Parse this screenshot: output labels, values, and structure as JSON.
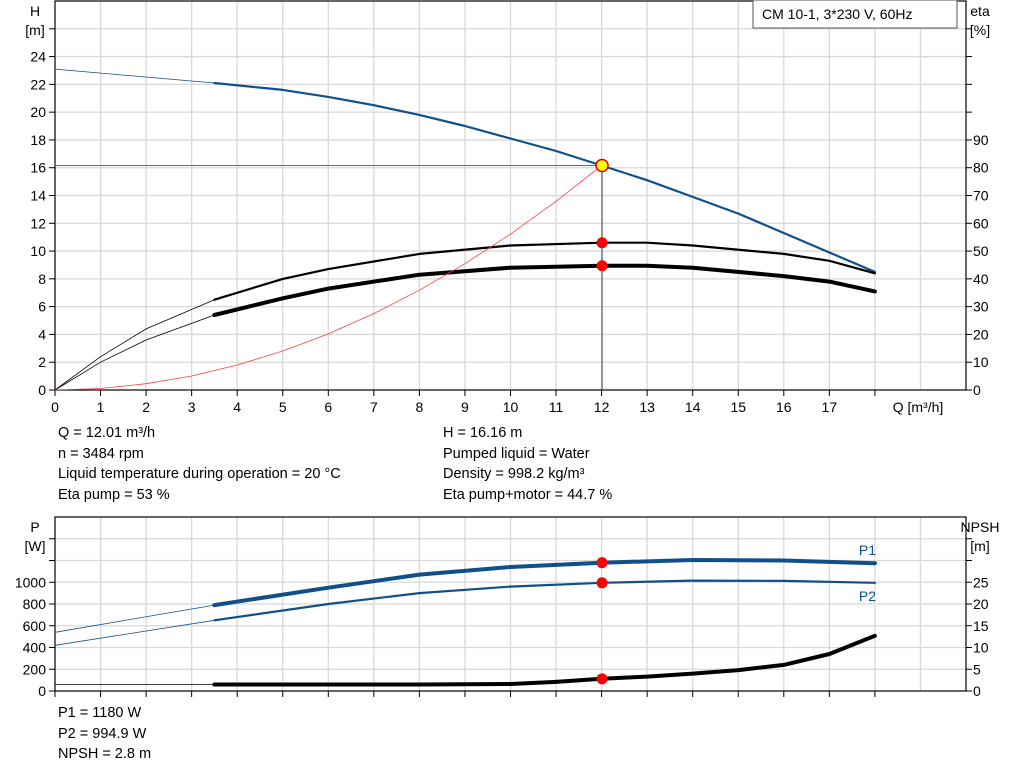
{
  "chart_data": [
    {
      "type": "line",
      "legend_box": "CM 10-1, 3*230 V, 60Hz",
      "xlabel": "Q [m³/h]",
      "ylabel_left": [
        "H",
        "[m]"
      ],
      "ylabel_right": [
        "eta",
        "[%]"
      ],
      "x_ticks": [
        0,
        1,
        2,
        3,
        4,
        5,
        6,
        7,
        8,
        9,
        10,
        11,
        12,
        13,
        14,
        15,
        16,
        17
      ],
      "xlim": [
        0,
        20
      ],
      "y_left_ticks": [
        0,
        2,
        4,
        6,
        8,
        10,
        12,
        14,
        16,
        18,
        20,
        22,
        24
      ],
      "ylim_left": [
        0,
        28
      ],
      "y_right_ticks": [
        0,
        10,
        20,
        30,
        40,
        50,
        60,
        70,
        80,
        90
      ],
      "ylim_right": [
        0,
        140
      ],
      "grid": true,
      "series": [
        {
          "id": "H",
          "axis": "left",
          "color": "#0f4f8a",
          "x": [
            0,
            3.5,
            5,
            6,
            7,
            8,
            9,
            10,
            11,
            12,
            13,
            14,
            15,
            16,
            17,
            18
          ],
          "y": [
            23.1,
            22.1,
            21.6,
            21.1,
            20.5,
            19.8,
            19.0,
            18.1,
            17.2,
            16.16,
            15.1,
            13.9,
            12.7,
            11.3,
            9.9,
            8.5
          ],
          "thin_until": 3.5
        },
        {
          "id": "eta_pump",
          "axis": "right",
          "color": "#000000",
          "x": [
            0,
            1,
            2,
            3.5,
            5,
            6,
            8,
            10,
            12,
            13,
            14,
            16,
            17,
            18
          ],
          "y": [
            0,
            12,
            22,
            32.5,
            40,
            43.5,
            49,
            52,
            53,
            53,
            52,
            49,
            46.5,
            42
          ],
          "thin_until": 3.5
        },
        {
          "id": "eta_pump_motor",
          "axis": "right",
          "color": "#000000",
          "x": [
            0,
            1,
            2,
            3.5,
            5,
            6,
            8,
            10,
            12,
            13,
            14,
            16,
            17,
            18
          ],
          "y": [
            0,
            10,
            18,
            27,
            33,
            36.5,
            41.5,
            44,
            44.7,
            44.7,
            44,
            41,
            39,
            35.5
          ],
          "thin_until": 3.5,
          "bold": true
        },
        {
          "id": "system_curve",
          "axis": "left",
          "color": "#ff4040",
          "x": [
            0,
            1,
            2,
            3,
            4,
            5,
            6,
            7,
            8,
            9,
            10,
            11,
            12
          ],
          "y": [
            0,
            0.11,
            0.45,
            1.01,
            1.8,
            2.81,
            4.04,
            5.5,
            7.18,
            9.09,
            11.22,
            13.58,
            16.16
          ]
        }
      ],
      "operating_point": {
        "Q": 12.01,
        "H": 16.16,
        "eta_pump": 53,
        "eta_pump_motor": 44.7
      }
    },
    {
      "type": "line",
      "ylabel_left": [
        "P",
        "[W]"
      ],
      "ylabel_right": [
        "NPSH",
        "[m]"
      ],
      "xlim": [
        0,
        20
      ],
      "y_left_ticks": [
        0,
        200,
        400,
        600,
        800,
        1000
      ],
      "ylim_left": [
        0,
        1600
      ],
      "y_right_ticks": [
        0,
        5,
        10,
        15,
        20,
        25
      ],
      "ylim_right": [
        0,
        40
      ],
      "grid": true,
      "series": [
        {
          "id": "P1",
          "name": "P1",
          "axis": "left",
          "color": "#0f4f8a",
          "x": [
            0,
            3.5,
            6,
            8,
            10,
            12,
            14,
            16,
            18
          ],
          "y": [
            540,
            790,
            950,
            1070,
            1140,
            1180,
            1205,
            1200,
            1175
          ],
          "thin_until": 3.5,
          "bold": true
        },
        {
          "id": "P2",
          "name": "P2",
          "axis": "left",
          "color": "#0f4f8a",
          "x": [
            0,
            3.5,
            6,
            8,
            10,
            12,
            14,
            16,
            18
          ],
          "y": [
            420,
            650,
            800,
            900,
            960,
            995,
            1015,
            1012,
            995
          ],
          "thin_until": 3.5
        },
        {
          "id": "NPSH",
          "axis": "right",
          "color": "#000000",
          "x": [
            0,
            3.5,
            8,
            10,
            11,
            12,
            13,
            14,
            15,
            16,
            17,
            18
          ],
          "y": [
            1.5,
            1.5,
            1.5,
            1.6,
            2.1,
            2.8,
            3.3,
            4.0,
            4.8,
            6.0,
            8.5,
            12.7
          ],
          "thin_until": 3.5,
          "bold": true
        }
      ],
      "operating_point": {
        "Q": 12.01,
        "P1": 1180,
        "P2": 994.9,
        "NPSH": 2.8
      }
    }
  ],
  "info_top": {
    "left": [
      "Q = 12.01 m³/h",
      "n = 3484 rpm",
      "Liquid temperature during operation = 20 °C",
      "Eta pump = 53 %"
    ],
    "right": [
      "H = 16.16 m",
      "Pumped liquid = Water",
      "Density = 998.2 kg/m³",
      "Eta pump+motor = 44.7 %"
    ]
  },
  "info_bottom": [
    "P1 = 1180 W",
    "P2 = 994.9 W",
    "NPSH = 2.8 m"
  ]
}
